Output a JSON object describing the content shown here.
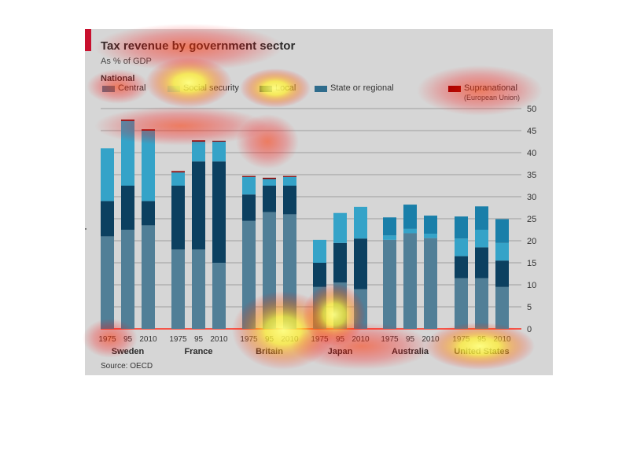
{
  "colors": {
    "central": "#517f97",
    "social_security": "#9ac3d6",
    "social_security_bar": "#35a3c8",
    "local": "#0c4060",
    "state_or_regional": "#1a7fa9",
    "supranational": "#8b0000",
    "background": "#d6d6d6",
    "accent": "#c8102e",
    "legend_local": "#0c4060",
    "legend_state": "#2f6c8c"
  },
  "chart_data": {
    "type": "bar",
    "stacked": true,
    "title": "Tax revenue by government sector",
    "subtitle": "As % of GDP",
    "legend_group_label": "National",
    "source": "Source: OECD",
    "ylim": [
      0,
      50
    ],
    "y_ticks": [
      "0",
      "5",
      "10",
      "15",
      "20",
      "25",
      "30",
      "35",
      "40",
      "45",
      "50"
    ],
    "legend": [
      {
        "key": "central",
        "label": "Central"
      },
      {
        "key": "social_security",
        "label": "Social security"
      },
      {
        "key": "local",
        "label": "Local"
      },
      {
        "key": "state_or_regional",
        "label": "State or regional"
      },
      {
        "key": "supranational",
        "label": "Supranational",
        "sublabel": "(European Union)"
      }
    ],
    "groups": [
      {
        "country": "Sweden",
        "bars": [
          {
            "year": "1975",
            "central": 21,
            "local": 8,
            "social_security": 12,
            "state_or_regional": 0,
            "supranational": 0
          },
          {
            "year": "95",
            "central": 22.5,
            "local": 10,
            "social_security": 14.7,
            "state_or_regional": 0,
            "supranational": 0.3
          },
          {
            "year": "2010",
            "central": 23.5,
            "local": 5.5,
            "social_security": 16,
            "state_or_regional": 0,
            "supranational": 0.3
          }
        ]
      },
      {
        "country": "France",
        "bars": [
          {
            "year": "1975",
            "central": 18,
            "local": 14.5,
            "social_security": 3,
            "state_or_regional": 0,
            "supranational": 0.3
          },
          {
            "year": "95",
            "central": 18,
            "local": 20,
            "social_security": 4.5,
            "state_or_regional": 0,
            "supranational": 0.3
          },
          {
            "year": "2010",
            "central": 15,
            "local": 23,
            "social_security": 4.5,
            "state_or_regional": 0,
            "supranational": 0.2
          }
        ]
      },
      {
        "country": "Britain",
        "bars": [
          {
            "year": "1975",
            "central": 24.5,
            "local": 6,
            "social_security": 4,
            "state_or_regional": 0,
            "supranational": 0.2
          },
          {
            "year": "95",
            "central": 26.5,
            "local": 6,
            "social_security": 1.5,
            "state_or_regional": 0,
            "supranational": 0.3
          },
          {
            "year": "2010",
            "central": 26,
            "local": 6.5,
            "social_security": 2,
            "state_or_regional": 0,
            "supranational": 0.2
          }
        ]
      },
      {
        "country": "Japan",
        "bars": [
          {
            "year": "1975",
            "central": 9.5,
            "local": 5.5,
            "social_security": 5.2,
            "state_or_regional": 0,
            "supranational": 0
          },
          {
            "year": "95",
            "central": 10.5,
            "local": 9,
            "social_security": 6.8,
            "state_or_regional": 0,
            "supranational": 0
          },
          {
            "year": "2010",
            "central": 9,
            "local": 11.5,
            "social_security": 7.2,
            "state_or_regional": 0,
            "supranational": 0
          }
        ]
      },
      {
        "country": "Australia",
        "bars": [
          {
            "year": "1975",
            "central": 20.2,
            "local": 0,
            "social_security": 1,
            "state_or_regional": 4.1,
            "supranational": 0
          },
          {
            "year": "95",
            "central": 21.7,
            "local": 0,
            "social_security": 1,
            "state_or_regional": 5.5,
            "supranational": 0
          },
          {
            "year": "2010",
            "central": 20.6,
            "local": 0,
            "social_security": 1,
            "state_or_regional": 4.1,
            "supranational": 0
          }
        ]
      },
      {
        "country": "United States",
        "bars": [
          {
            "year": "1975",
            "central": 11.5,
            "local": 5,
            "social_security": 4,
            "state_or_regional": 5,
            "supranational": 0
          },
          {
            "year": "95",
            "central": 11.5,
            "local": 7,
            "social_security": 4,
            "state_or_regional": 5.3,
            "supranational": 0
          },
          {
            "year": "2010",
            "central": 9.5,
            "local": 6,
            "social_security": 4,
            "state_or_regional": 5.4,
            "supranational": 0
          }
        ]
      }
    ]
  }
}
